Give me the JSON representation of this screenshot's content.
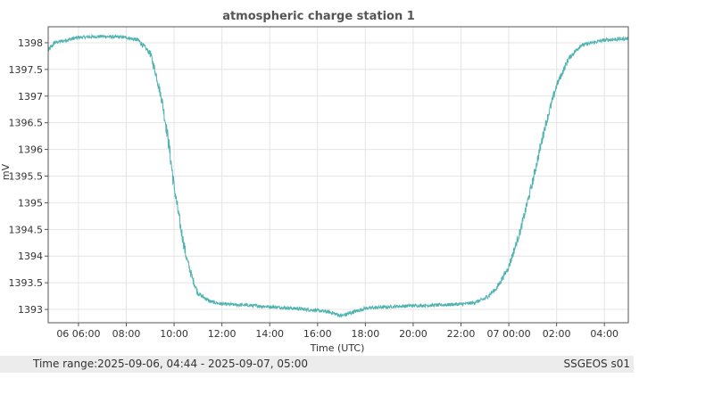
{
  "window": {
    "status_range_label": "Time range:",
    "status_range_value": "2025-09-06, 04:44 - 2025-09-07, 05:00",
    "status_station": "SSGEOS s01"
  },
  "colors": {
    "series": "#4fb3b0",
    "grid": "#e4e4e4",
    "axis": "#555555"
  },
  "chart_data": {
    "type": "line",
    "title": "atmospheric charge station 1",
    "xlabel": "Time (UTC)",
    "ylabel": "mV",
    "xlim": [
      "2025-09-06T04:44",
      "2025-09-07T05:00"
    ],
    "ylim": [
      1392.75,
      1398.3
    ],
    "yticks": [
      1393,
      1393.5,
      1394,
      1394.5,
      1395,
      1395.5,
      1396,
      1396.5,
      1397,
      1397.5,
      1398
    ],
    "ytick_labels": [
      "1393",
      "1393.5",
      "1394",
      "1394.5",
      "1395",
      "1395.5",
      "1396",
      "1396.5",
      "1397",
      "1397.5",
      "1398"
    ],
    "xticks": [
      "2025-09-06T06:00",
      "2025-09-06T08:00",
      "2025-09-06T10:00",
      "2025-09-06T12:00",
      "2025-09-06T14:00",
      "2025-09-06T16:00",
      "2025-09-06T18:00",
      "2025-09-06T20:00",
      "2025-09-06T22:00",
      "2025-09-07T00:00",
      "2025-09-07T02:00",
      "2025-09-07T04:00"
    ],
    "xtick_labels": [
      "06 06:00",
      "08:00",
      "10:00",
      "12:00",
      "14:00",
      "16:00",
      "18:00",
      "20:00",
      "22:00",
      "07 00:00",
      "02:00",
      "04:00"
    ],
    "grid": true,
    "series": [
      {
        "x": [
          "2025-09-06T04:44",
          "2025-09-06T05:00",
          "2025-09-06T05:30",
          "2025-09-06T06:00",
          "2025-09-06T07:00",
          "2025-09-06T08:00",
          "2025-09-06T08:30",
          "2025-09-06T09:00",
          "2025-09-06T09:15",
          "2025-09-06T09:30",
          "2025-09-06T09:45",
          "2025-09-06T10:00",
          "2025-09-06T10:15",
          "2025-09-06T10:30",
          "2025-09-06T10:45",
          "2025-09-06T11:00",
          "2025-09-06T11:30",
          "2025-09-06T12:00",
          "2025-09-06T13:00",
          "2025-09-06T14:00",
          "2025-09-06T15:00",
          "2025-09-06T16:00",
          "2025-09-06T16:30",
          "2025-09-06T17:00",
          "2025-09-06T17:30",
          "2025-09-06T18:00",
          "2025-09-06T19:00",
          "2025-09-06T20:00",
          "2025-09-06T21:00",
          "2025-09-06T22:00",
          "2025-09-06T22:30",
          "2025-09-06T23:00",
          "2025-09-06T23:30",
          "2025-09-07T00:00",
          "2025-09-07T00:30",
          "2025-09-07T01:00",
          "2025-09-07T01:30",
          "2025-09-07T02:00",
          "2025-09-07T02:30",
          "2025-09-07T03:00",
          "2025-09-07T04:00",
          "2025-09-07T05:00"
        ],
        "values": [
          1397.85,
          1398.0,
          1398.05,
          1398.1,
          1398.12,
          1398.1,
          1398.05,
          1397.8,
          1397.4,
          1396.9,
          1396.2,
          1395.3,
          1394.6,
          1394.0,
          1393.6,
          1393.3,
          1393.15,
          1393.1,
          1393.08,
          1393.05,
          1393.02,
          1392.98,
          1392.95,
          1392.88,
          1392.95,
          1393.02,
          1393.05,
          1393.07,
          1393.08,
          1393.1,
          1393.12,
          1393.2,
          1393.4,
          1393.8,
          1394.5,
          1395.4,
          1396.4,
          1397.2,
          1397.7,
          1397.95,
          1398.05,
          1398.08
        ]
      }
    ]
  }
}
